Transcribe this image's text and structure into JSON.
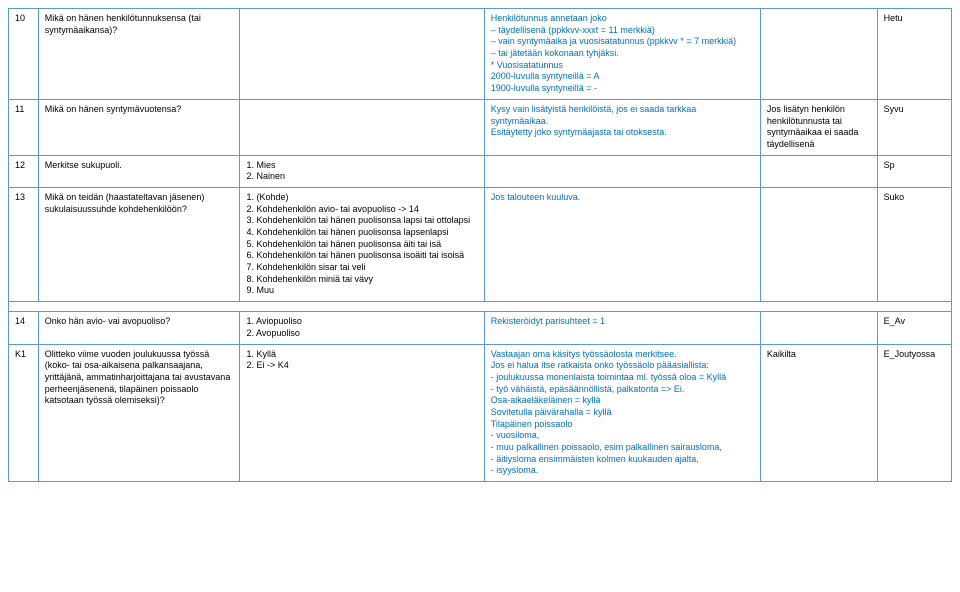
{
  "colors": {
    "border": "#5b9bd5",
    "blue_text": "#0070c0",
    "black": "#000000",
    "bg": "#ffffff"
  },
  "rows": [
    {
      "num": "10",
      "q": "Mikä on hänen henkilötunnuksensa (tai syntymäaikansa)?",
      "ans": "",
      "note_lines": [
        "Henkilötunnus annetaan joko",
        "– täydellisenä (ppkkvv-xxxt = 11 merkkiä)",
        "– vain syntymäaika ja vuosisatatunnus (ppkkvv * = 7 merkkiä)",
        "– tai jätetään kokonaan tyhjäksi.",
        "* Vuosisatatunnus",
        "2000-luvulla syntyneillä = A",
        "1900-luvulla syntyneillä = -"
      ],
      "extra": "",
      "code": "Hetu"
    },
    {
      "num": "11",
      "q": "Mikä on hänen syntymävuotensa?",
      "ans": "",
      "note_lines": [
        "Kysy vain lisätyistä henkilöistä, jos ei saada tarkkaa syntymäaikaa.",
        "Esitäytetty joko syntymäajasta tai otoksesta."
      ],
      "extra": "Jos lisätyn henkilön henkilötunnusta tai syntymäaikaa ei saada täydellisenä",
      "code": "Syvu"
    },
    {
      "num": "12",
      "q": "Merkitse sukupuoli.",
      "ans": "1. Mies\n2. Nainen",
      "note": "",
      "extra": "",
      "code": "Sp"
    },
    {
      "num": "13",
      "q": "Mikä on teidän (haastateltavan jäsenen) sukulaisuussuhde kohdehenkilöön?",
      "ans": "1. (Kohde)\n2. Kohdehenkilön avio- tai avopuoliso ->  14\n3. Kohdehenkilön tai hänen puolisonsa lapsi tai ottolapsi\n4. Kohdehenkilön tai hänen puolisonsa lapsenlapsi\n5. Kohdehenkilön tai hänen puolisonsa äiti tai isä\n6. Kohdehenkilön tai hänen puolisonsa isoäiti tai isoisä\n7. Kohdehenkilön sisar tai veli\n8. Kohdehenkilön miniä tai vävy\n9. Muu",
      "note_plain": "Jos talouteen kuuluva.",
      "extra": "",
      "code": "Suko"
    },
    {
      "num": "14",
      "q": "Onko hän avio- vai avopuoliso?",
      "ans": "1. Aviopuoliso\n2. Avopuoliso",
      "note_plain": "Rekisteröidyt parisuhteet = 1",
      "extra": "",
      "code": "E_Av"
    },
    {
      "num": "K1",
      "q": "Olitteko viime vuoden joulukuussa työssä (koko- tai osa-aikaisena palkansaajana, yrittäjänä, ammatinharjoittajana tai avustavana perheenjäsenenä, tilapäinen poissaolo katsotaan työssä olemiseksi)?",
      "ans": "1. Kyllä\n2. Ei ->  K4",
      "note_lines": [
        "Vastaajan oma käsitys työssäolosta merkitsee.",
        "Jos ei halua itse ratkaista onko työssäolo pääasiallista:",
        "- joulukuussa monenlaista toimintaa ml. työssä oloa = Kyllä",
        "- työ vähäistä, epäsäännöllistä, palkatonta => Ei.",
        "Osa-aikaeläkeläinen = kyllä",
        "Sovitetulla päivärahalla = kyllä",
        "Tilapäinen poissaolo",
        "- vuosiloma,",
        "- muu palkallinen poissaolo, esim palkallinen sairausloma,",
        "- äitiysloma ensimmäisten kolmen kuukauden ajalta,",
        "- isyysloma."
      ],
      "extra": "Kaikilta",
      "code": "E_Joutyossa"
    }
  ]
}
